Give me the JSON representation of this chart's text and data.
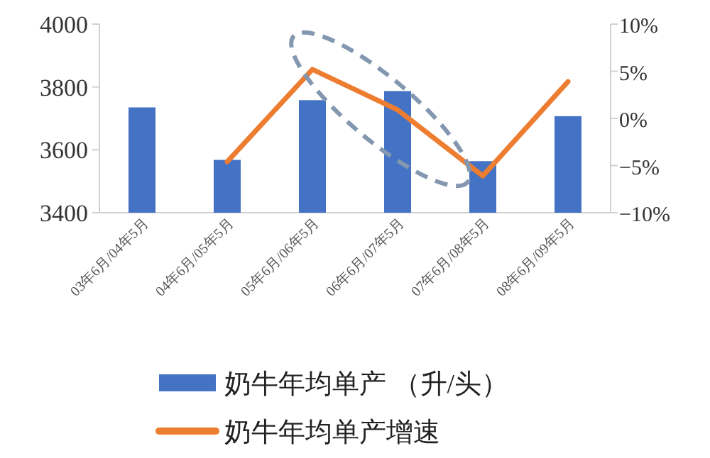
{
  "chart_data": {
    "type": "bar",
    "categories": [
      "03年6月/04年5月",
      "04年6月/05年5月",
      "05年6月/06年5月",
      "06年6月/07年5月",
      "07年6月/08年5月",
      "08年6月/09年5月"
    ],
    "series": [
      {
        "name": "奶牛年均单产 （升/头）",
        "color": "#4472c4",
        "values": [
          3735,
          3568,
          3758,
          3787,
          3564,
          3707
        ]
      },
      {
        "name": "奶牛年均单产增速",
        "type": "line",
        "axis": "y2",
        "color": "#ed7d31",
        "values": [
          null,
          -4.6,
          5.2,
          0.9,
          -6.1,
          3.9
        ]
      }
    ],
    "ylim": [
      3400,
      4000
    ],
    "yticks": [
      3400,
      3600,
      3800,
      4000
    ],
    "y2lim": [
      -10,
      10
    ],
    "y2ticks": [
      {
        "value": -10,
        "label": "−10%"
      },
      {
        "value": -5,
        "label": "−5%"
      },
      {
        "value": 0,
        "label": "0%"
      },
      {
        "value": 5,
        "label": "5%"
      },
      {
        "value": 10,
        "label": "10%"
      }
    ],
    "grid": false,
    "legend": "bottom",
    "marker": "none",
    "line_style": "solid"
  }
}
